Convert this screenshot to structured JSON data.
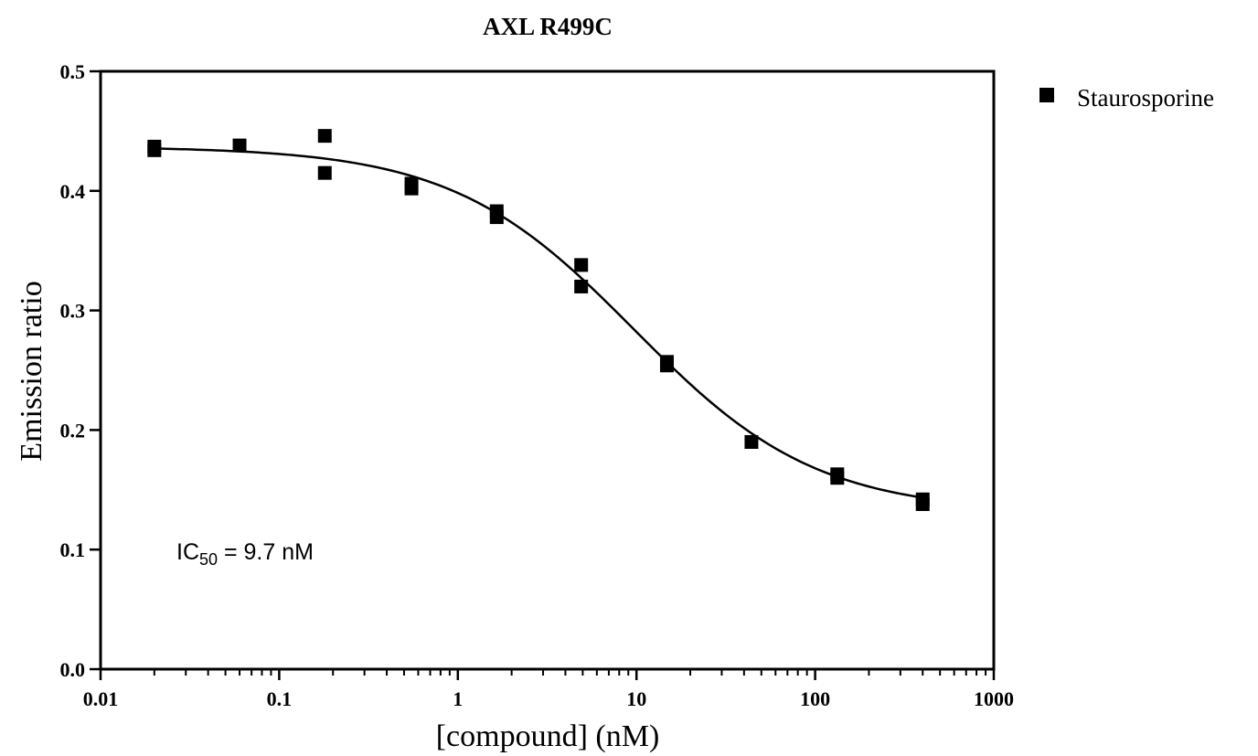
{
  "chart_data": {
    "type": "scatter",
    "title": "AXL R499C",
    "xlabel": "[compound] (nM)",
    "ylabel": "Emission ratio",
    "x_scale": "log",
    "xlim": [
      0.01,
      1000
    ],
    "ylim": [
      0.0,
      0.5
    ],
    "x_ticks": [
      0.01,
      0.1,
      1,
      10,
      100,
      1000
    ],
    "x_tick_labels": [
      "0.01",
      "0.1",
      "1",
      "10",
      "100",
      "1000"
    ],
    "y_ticks": [
      0.0,
      0.1,
      0.2,
      0.3,
      0.4,
      0.5
    ],
    "y_tick_labels": [
      "0.0",
      "0.1",
      "0.2",
      "0.3",
      "0.4",
      "0.5"
    ],
    "grid": false,
    "legend_position": "right",
    "series": [
      {
        "name": "Staurosporine",
        "marker": "square",
        "color": "#000000",
        "x": [
          0.02,
          0.02,
          0.06,
          0.18,
          0.18,
          0.55,
          0.55,
          1.65,
          1.65,
          4.9,
          4.9,
          14.8,
          14.8,
          44,
          133,
          133,
          400,
          400
        ],
        "y": [
          0.437,
          0.434,
          0.438,
          0.446,
          0.415,
          0.406,
          0.402,
          0.383,
          0.378,
          0.338,
          0.32,
          0.257,
          0.254,
          0.19,
          0.163,
          0.16,
          0.142,
          0.138
        ]
      }
    ],
    "fit_curve": {
      "model": "sigmoidal dose-response",
      "top": 0.437,
      "bottom": 0.131,
      "ic50": 9.7,
      "hill_slope": 0.85
    },
    "annotation": {
      "text_main": "IC",
      "text_sub": "50",
      "text_rest": " = 9.7 nM"
    }
  }
}
